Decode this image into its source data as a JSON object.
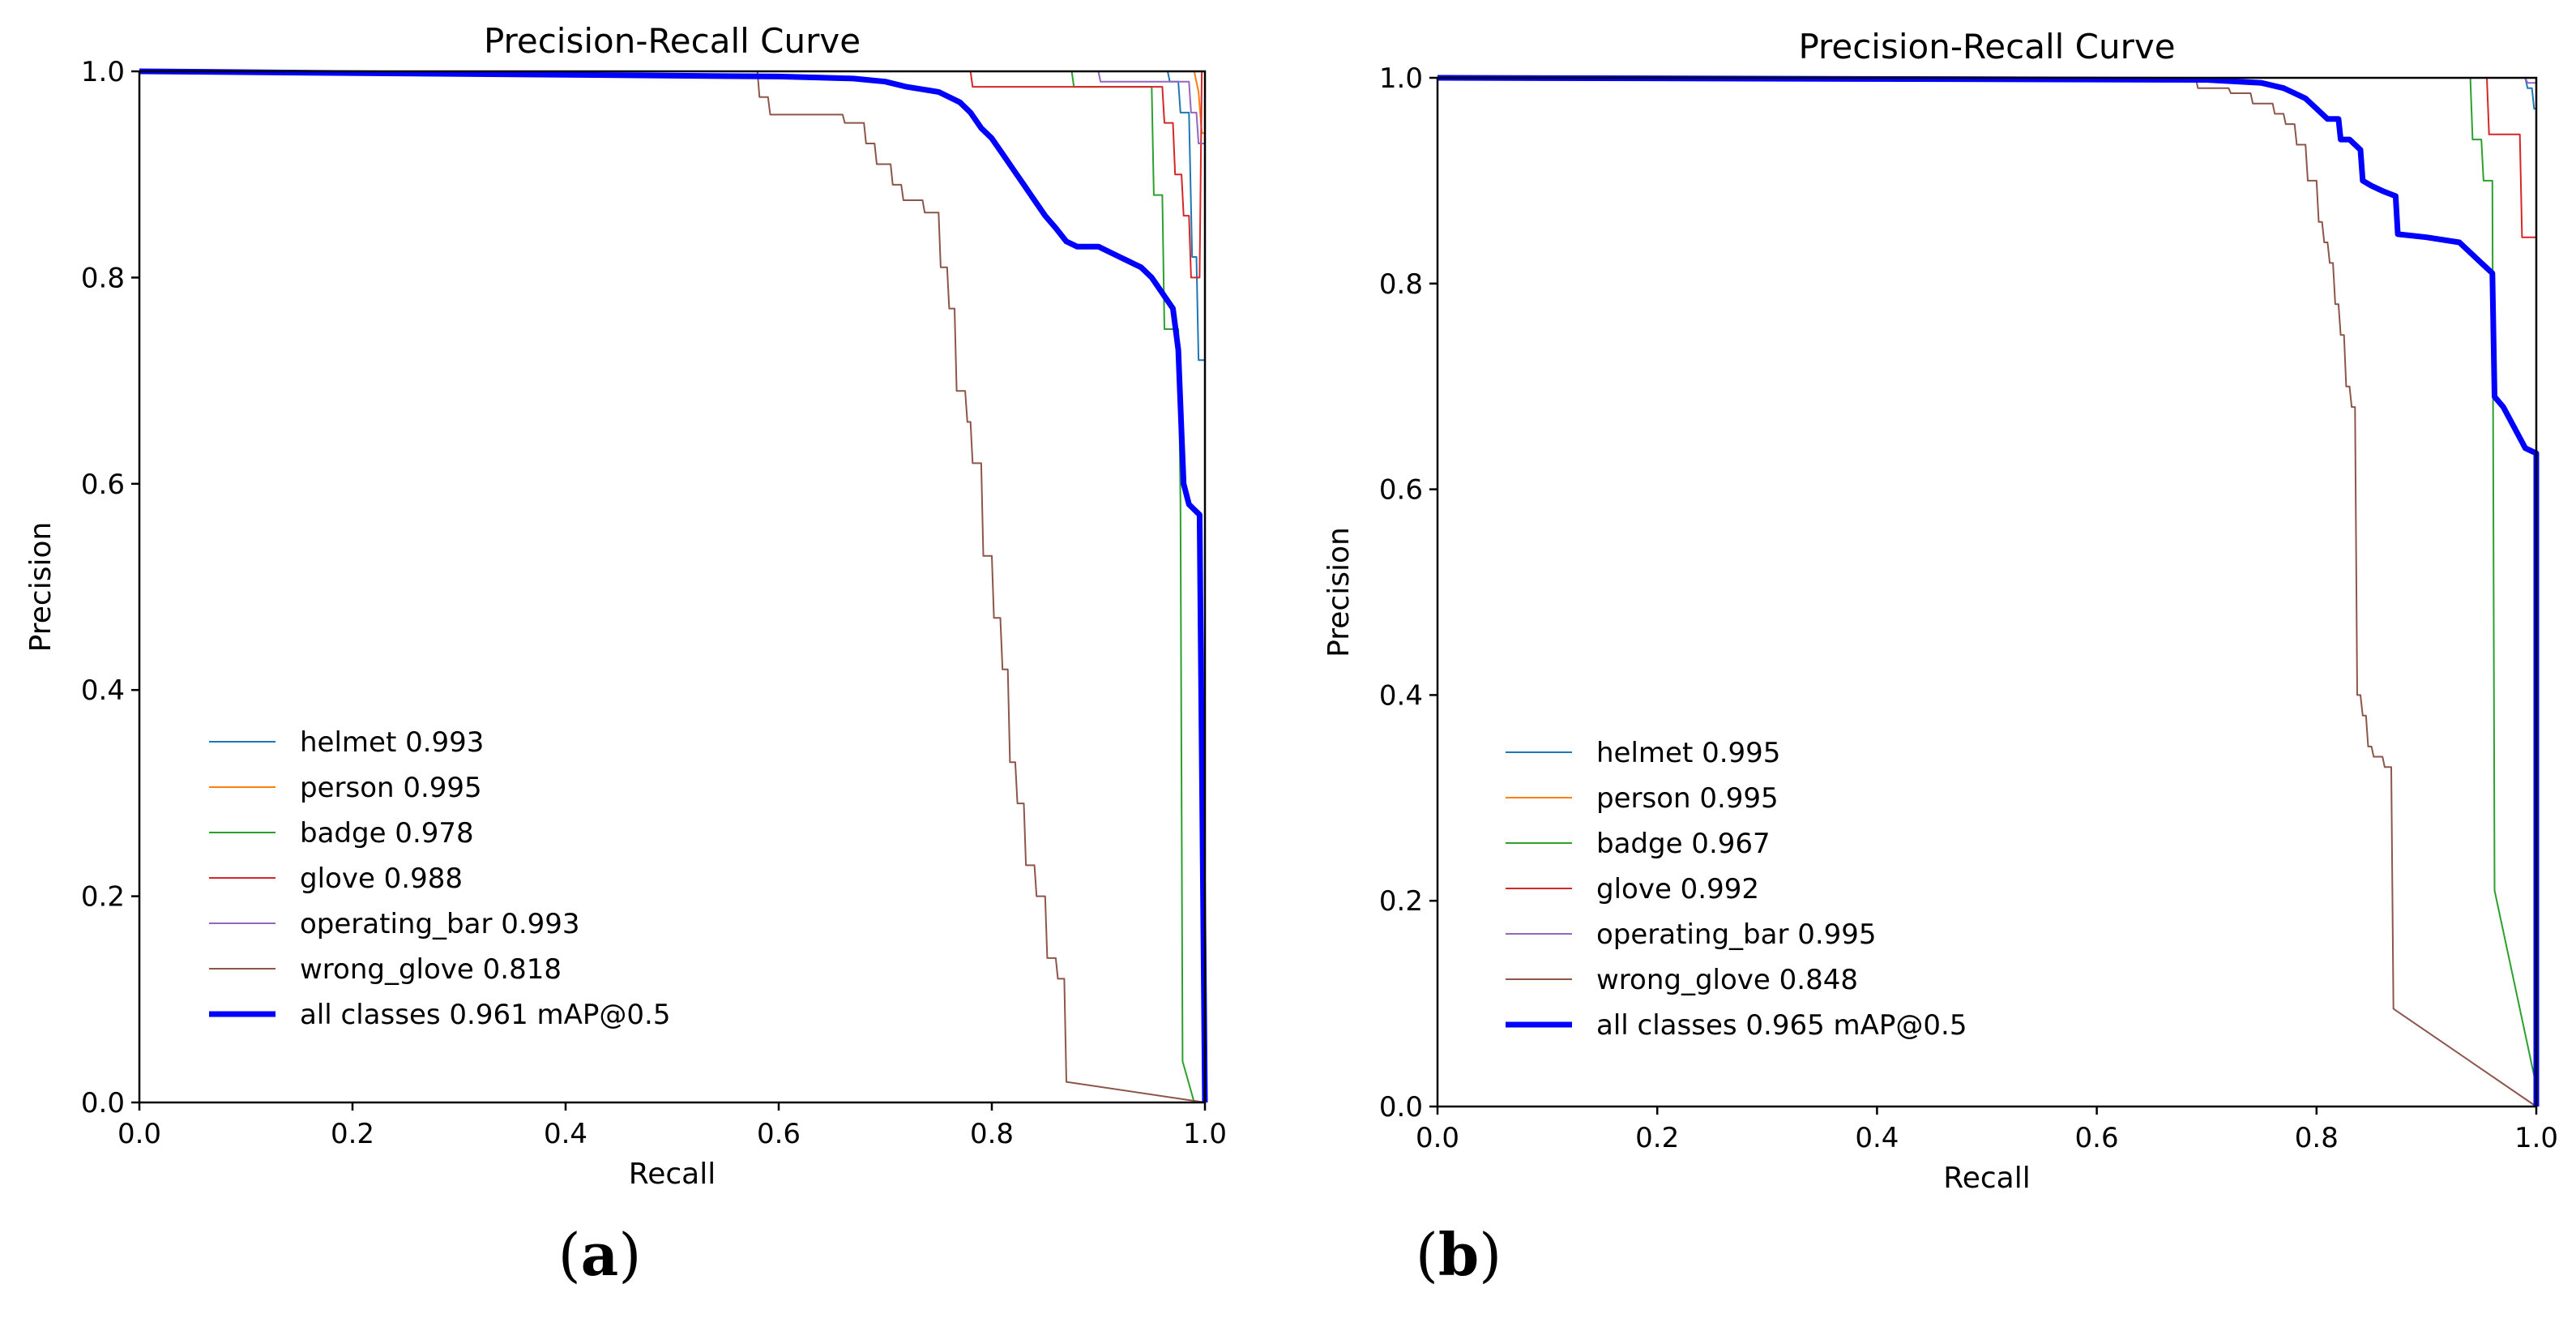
{
  "chart_data": [
    {
      "type": "line",
      "panel_label": "a",
      "title": "Precision-Recall Curve",
      "xlabel": "Recall",
      "ylabel": "Precision",
      "xlim": [
        0,
        1
      ],
      "ylim": [
        0,
        1
      ],
      "xticks": [
        "0.0",
        "0.2",
        "0.4",
        "0.6",
        "0.8",
        "1.0"
      ],
      "yticks": [
        "0.0",
        "0.2",
        "0.4",
        "0.6",
        "0.8",
        "1.0"
      ],
      "legend_position": "lower-left",
      "series": [
        {
          "name": "helmet",
          "label": "helmet 0.993",
          "ap": 0.993,
          "color": "#1f77b4",
          "width": 2,
          "points": [
            [
              0,
              1
            ],
            [
              0.965,
              1
            ],
            [
              0.967,
              0.99
            ],
            [
              0.975,
              0.99
            ],
            [
              0.977,
              0.96
            ],
            [
              0.985,
              0.96
            ],
            [
              0.988,
              0.82
            ],
            [
              0.992,
              0.82
            ],
            [
              0.994,
              0.72
            ],
            [
              1.0,
              0.72
            ]
          ]
        },
        {
          "name": "person",
          "label": "person 0.995",
          "ap": 0.995,
          "color": "#ff7f0e",
          "width": 2,
          "points": [
            [
              0,
              1
            ],
            [
              0.99,
              1
            ],
            [
              0.994,
              0.98
            ],
            [
              0.997,
              0.94
            ],
            [
              1.0,
              0.94
            ],
            [
              1.0,
              0
            ]
          ]
        },
        {
          "name": "badge",
          "label": "badge 0.978",
          "ap": 0.978,
          "color": "#2ca02c",
          "width": 2,
          "points": [
            [
              0,
              1
            ],
            [
              0.875,
              1
            ],
            [
              0.877,
              0.985
            ],
            [
              0.95,
              0.985
            ],
            [
              0.952,
              0.88
            ],
            [
              0.96,
              0.88
            ],
            [
              0.962,
              0.75
            ],
            [
              0.975,
              0.75
            ],
            [
              0.977,
              0.58
            ],
            [
              0.979,
              0.04
            ],
            [
              0.99,
              0.0
            ]
          ]
        },
        {
          "name": "glove",
          "label": "glove 0.988",
          "ap": 0.988,
          "color": "#d62728",
          "width": 2,
          "points": [
            [
              0,
              1
            ],
            [
              0.78,
              1
            ],
            [
              0.782,
              0.985
            ],
            [
              0.96,
              0.985
            ],
            [
              0.962,
              0.95
            ],
            [
              0.97,
              0.95
            ],
            [
              0.972,
              0.9
            ],
            [
              0.978,
              0.9
            ],
            [
              0.98,
              0.86
            ],
            [
              0.985,
              0.86
            ],
            [
              0.987,
              0.8
            ],
            [
              0.995,
              0.8
            ],
            [
              0.997,
              1.0
            ],
            [
              1.0,
              1.0
            ],
            [
              1.0,
              0
            ]
          ]
        },
        {
          "name": "operating_bar",
          "label": "operating_bar 0.993",
          "ap": 0.993,
          "color": "#9467bd",
          "width": 2,
          "points": [
            [
              0,
              1
            ],
            [
              0.9,
              1
            ],
            [
              0.902,
              0.99
            ],
            [
              0.985,
              0.99
            ],
            [
              0.987,
              0.96
            ],
            [
              0.992,
              0.96
            ],
            [
              0.994,
              0.93
            ],
            [
              1.0,
              0.93
            ],
            [
              1.0,
              0
            ]
          ]
        },
        {
          "name": "wrong_glove",
          "label": "wrong_glove 0.818",
          "ap": 0.818,
          "color": "#8c564b",
          "width": 2,
          "points": [
            [
              0,
              1
            ],
            [
              0.58,
              1
            ],
            [
              0.582,
              0.975
            ],
            [
              0.59,
              0.975
            ],
            [
              0.592,
              0.958
            ],
            [
              0.66,
              0.958
            ],
            [
              0.662,
              0.95
            ],
            [
              0.68,
              0.95
            ],
            [
              0.682,
              0.93
            ],
            [
              0.69,
              0.93
            ],
            [
              0.692,
              0.91
            ],
            [
              0.705,
              0.91
            ],
            [
              0.707,
              0.89
            ],
            [
              0.715,
              0.89
            ],
            [
              0.717,
              0.875
            ],
            [
              0.735,
              0.875
            ],
            [
              0.737,
              0.863
            ],
            [
              0.75,
              0.863
            ],
            [
              0.752,
              0.81
            ],
            [
              0.758,
              0.81
            ],
            [
              0.76,
              0.77
            ],
            [
              0.765,
              0.77
            ],
            [
              0.767,
              0.69
            ],
            [
              0.775,
              0.69
            ],
            [
              0.777,
              0.66
            ],
            [
              0.78,
              0.66
            ],
            [
              0.782,
              0.62
            ],
            [
              0.79,
              0.62
            ],
            [
              0.792,
              0.53
            ],
            [
              0.8,
              0.53
            ],
            [
              0.802,
              0.47
            ],
            [
              0.808,
              0.47
            ],
            [
              0.81,
              0.42
            ],
            [
              0.815,
              0.42
            ],
            [
              0.817,
              0.33
            ],
            [
              0.822,
              0.33
            ],
            [
              0.824,
              0.29
            ],
            [
              0.83,
              0.29
            ],
            [
              0.832,
              0.23
            ],
            [
              0.84,
              0.23
            ],
            [
              0.842,
              0.2
            ],
            [
              0.85,
              0.2
            ],
            [
              0.852,
              0.14
            ],
            [
              0.86,
              0.14
            ],
            [
              0.862,
              0.12
            ],
            [
              0.868,
              0.12
            ],
            [
              0.87,
              0.02
            ],
            [
              1.0,
              0.0
            ]
          ]
        },
        {
          "name": "all_classes",
          "label": "all classes 0.961 mAP@0.5",
          "ap": 0.961,
          "color": "#0000ff",
          "width": 7,
          "points": [
            [
              0,
              1
            ],
            [
              0.6,
              0.995
            ],
            [
              0.67,
              0.993
            ],
            [
              0.7,
              0.99
            ],
            [
              0.72,
              0.985
            ],
            [
              0.75,
              0.98
            ],
            [
              0.77,
              0.97
            ],
            [
              0.78,
              0.96
            ],
            [
              0.79,
              0.945
            ],
            [
              0.8,
              0.935
            ],
            [
              0.81,
              0.92
            ],
            [
              0.82,
              0.905
            ],
            [
              0.83,
              0.89
            ],
            [
              0.84,
              0.875
            ],
            [
              0.85,
              0.86
            ],
            [
              0.86,
              0.848
            ],
            [
              0.87,
              0.835
            ],
            [
              0.88,
              0.83
            ],
            [
              0.9,
              0.83
            ],
            [
              0.91,
              0.825
            ],
            [
              0.92,
              0.82
            ],
            [
              0.94,
              0.81
            ],
            [
              0.95,
              0.8
            ],
            [
              0.96,
              0.785
            ],
            [
              0.97,
              0.77
            ],
            [
              0.975,
              0.73
            ],
            [
              0.978,
              0.65
            ],
            [
              0.98,
              0.6
            ],
            [
              0.985,
              0.58
            ],
            [
              0.99,
              0.575
            ],
            [
              0.995,
              0.57
            ],
            [
              1.0,
              0.0
            ]
          ]
        }
      ]
    },
    {
      "type": "line",
      "panel_label": "b",
      "title": "Precision-Recall Curve",
      "xlabel": "Recall",
      "ylabel": "Precision",
      "xlim": [
        0,
        1
      ],
      "ylim": [
        0,
        1
      ],
      "xticks": [
        "0.0",
        "0.2",
        "0.4",
        "0.6",
        "0.8",
        "1.0"
      ],
      "yticks": [
        "0.0",
        "0.2",
        "0.4",
        "0.6",
        "0.8",
        "1.0"
      ],
      "legend_position": "lower-left",
      "series": [
        {
          "name": "helmet",
          "label": "helmet 0.995",
          "ap": 0.995,
          "color": "#1f77b4",
          "width": 2,
          "points": [
            [
              0,
              1
            ],
            [
              0.99,
              1
            ],
            [
              0.992,
              0.99
            ],
            [
              0.996,
              0.99
            ],
            [
              0.998,
              0.97
            ],
            [
              1.0,
              0.97
            ],
            [
              1.0,
              0
            ]
          ]
        },
        {
          "name": "person",
          "label": "person 0.995",
          "ap": 0.995,
          "color": "#ff7f0e",
          "width": 2,
          "points": [
            [
              0,
              1
            ],
            [
              1.0,
              1
            ],
            [
              1.0,
              0
            ]
          ]
        },
        {
          "name": "badge",
          "label": "badge 0.967",
          "ap": 0.967,
          "color": "#2ca02c",
          "width": 2,
          "points": [
            [
              0,
              1
            ],
            [
              0.94,
              1
            ],
            [
              0.942,
              0.94
            ],
            [
              0.95,
              0.94
            ],
            [
              0.952,
              0.9
            ],
            [
              0.96,
              0.9
            ],
            [
              0.962,
              0.21
            ],
            [
              1.0,
              0.02
            ]
          ]
        },
        {
          "name": "glove",
          "label": "glove 0.992",
          "ap": 0.992,
          "color": "#d62728",
          "width": 2,
          "points": [
            [
              0,
              1
            ],
            [
              0.955,
              1
            ],
            [
              0.957,
              0.945
            ],
            [
              0.985,
              0.945
            ],
            [
              0.987,
              0.845
            ],
            [
              1.0,
              0.845
            ],
            [
              1.0,
              0
            ]
          ]
        },
        {
          "name": "operating_bar",
          "label": "operating_bar 0.995",
          "ap": 0.995,
          "color": "#9467bd",
          "width": 2,
          "points": [
            [
              0,
              1
            ],
            [
              0.99,
              1
            ],
            [
              0.992,
              0.995
            ],
            [
              1.0,
              0.995
            ],
            [
              1.0,
              0
            ]
          ]
        },
        {
          "name": "wrong_glove",
          "label": "wrong_glove 0.848",
          "ap": 0.848,
          "color": "#8c564b",
          "width": 2,
          "points": [
            [
              0,
              1
            ],
            [
              0.69,
              1
            ],
            [
              0.692,
              0.99
            ],
            [
              0.72,
              0.99
            ],
            [
              0.722,
              0.985
            ],
            [
              0.74,
              0.985
            ],
            [
              0.742,
              0.975
            ],
            [
              0.76,
              0.975
            ],
            [
              0.762,
              0.965
            ],
            [
              0.77,
              0.965
            ],
            [
              0.772,
              0.955
            ],
            [
              0.78,
              0.955
            ],
            [
              0.782,
              0.935
            ],
            [
              0.79,
              0.935
            ],
            [
              0.792,
              0.9
            ],
            [
              0.8,
              0.9
            ],
            [
              0.802,
              0.86
            ],
            [
              0.805,
              0.86
            ],
            [
              0.807,
              0.84
            ],
            [
              0.81,
              0.84
            ],
            [
              0.812,
              0.82
            ],
            [
              0.815,
              0.82
            ],
            [
              0.817,
              0.78
            ],
            [
              0.82,
              0.78
            ],
            [
              0.822,
              0.75
            ],
            [
              0.825,
              0.75
            ],
            [
              0.827,
              0.7
            ],
            [
              0.83,
              0.7
            ],
            [
              0.832,
              0.68
            ],
            [
              0.835,
              0.68
            ],
            [
              0.837,
              0.4
            ],
            [
              0.84,
              0.4
            ],
            [
              0.842,
              0.38
            ],
            [
              0.845,
              0.38
            ],
            [
              0.847,
              0.35
            ],
            [
              0.85,
              0.35
            ],
            [
              0.852,
              0.34
            ],
            [
              0.86,
              0.34
            ],
            [
              0.862,
              0.33
            ],
            [
              0.868,
              0.33
            ],
            [
              0.87,
              0.095
            ],
            [
              1.0,
              0.0
            ]
          ]
        },
        {
          "name": "all_classes",
          "label": "all classes 0.965 mAP@0.5",
          "ap": 0.965,
          "color": "#0000ff",
          "width": 7,
          "points": [
            [
              0,
              1
            ],
            [
              0.7,
              0.998
            ],
            [
              0.75,
              0.995
            ],
            [
              0.77,
              0.99
            ],
            [
              0.78,
              0.985
            ],
            [
              0.79,
              0.98
            ],
            [
              0.8,
              0.97
            ],
            [
              0.81,
              0.96
            ],
            [
              0.82,
              0.96
            ],
            [
              0.822,
              0.94
            ],
            [
              0.83,
              0.94
            ],
            [
              0.84,
              0.93
            ],
            [
              0.842,
              0.9
            ],
            [
              0.85,
              0.895
            ],
            [
              0.86,
              0.89
            ],
            [
              0.872,
              0.885
            ],
            [
              0.874,
              0.848
            ],
            [
              0.9,
              0.845
            ],
            [
              0.93,
              0.84
            ],
            [
              0.94,
              0.83
            ],
            [
              0.95,
              0.82
            ],
            [
              0.96,
              0.81
            ],
            [
              0.962,
              0.69
            ],
            [
              0.97,
              0.68
            ],
            [
              0.98,
              0.66
            ],
            [
              0.99,
              0.64
            ],
            [
              1.0,
              0.635
            ],
            [
              1.0,
              0.0
            ]
          ]
        }
      ]
    }
  ],
  "captions": {
    "a": {
      "open": "(",
      "letter": "a",
      "close": ")"
    },
    "b": {
      "open": "(",
      "letter": "b",
      "close": ")"
    }
  }
}
